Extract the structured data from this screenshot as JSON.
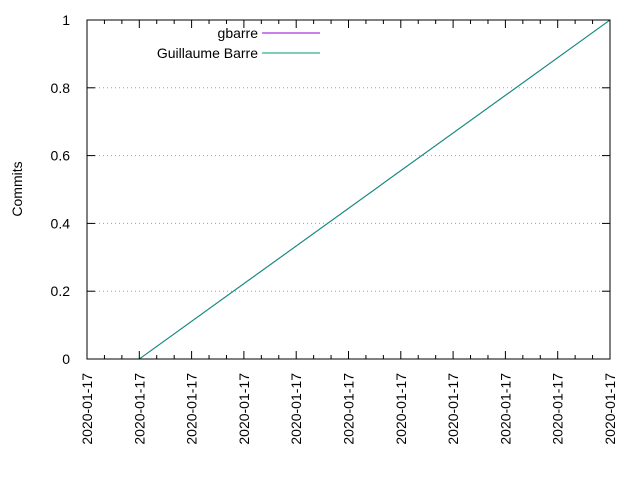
{
  "chart_data": {
    "type": "line",
    "title": "",
    "xlabel": "",
    "ylabel": "Commits",
    "ylim": [
      0,
      1
    ],
    "y_ticks": [
      "0",
      "0.2",
      "0.4",
      "0.6",
      "0.8",
      "1"
    ],
    "x_tick_labels": [
      "2020-01-17",
      "2020-01-17",
      "2020-01-17",
      "2020-01-17",
      "2020-01-17",
      "2020-01-17",
      "2020-01-17",
      "2020-01-17",
      "2020-01-17",
      "2020-01-17",
      "2020-01-17"
    ],
    "grid": "horizontal dotted",
    "legend_position": "top-left",
    "series": [
      {
        "name": "gbarre",
        "color": "#9400d3",
        "values": [
          0,
          1
        ]
      },
      {
        "name": "Guillaume Barre",
        "color": "#009e73",
        "values": [
          0,
          1
        ]
      }
    ]
  }
}
